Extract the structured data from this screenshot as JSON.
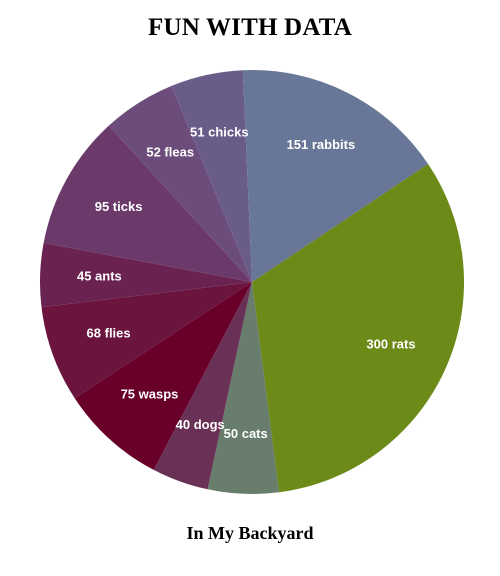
{
  "chart_data": {
    "type": "pie",
    "title": "FUN WITH DATA",
    "subtitle": "In My Backyard",
    "slices": [
      {
        "label": "300 rats",
        "value": 300,
        "color": "#6b8a17"
      },
      {
        "label": "50 cats",
        "value": 50,
        "color": "#687d6c"
      },
      {
        "label": "40 dogs",
        "value": 40,
        "color": "#6a3156"
      },
      {
        "label": "75 wasps",
        "value": 75,
        "color": "#68002a"
      },
      {
        "label": "68 flies",
        "value": 68,
        "color": "#6a143e"
      },
      {
        "label": "45 ants",
        "value": 45,
        "color": "#6a2350"
      },
      {
        "label": "95 ticks",
        "value": 95,
        "color": "#6b3a6b"
      },
      {
        "label": "52 fleas",
        "value": 52,
        "color": "#6b4c7a"
      },
      {
        "label": "51 chicks",
        "value": 51,
        "color": "#6a5c89"
      },
      {
        "label": "151 rabbits",
        "value": 151,
        "color": "#687797"
      }
    ],
    "legend": "none"
  }
}
